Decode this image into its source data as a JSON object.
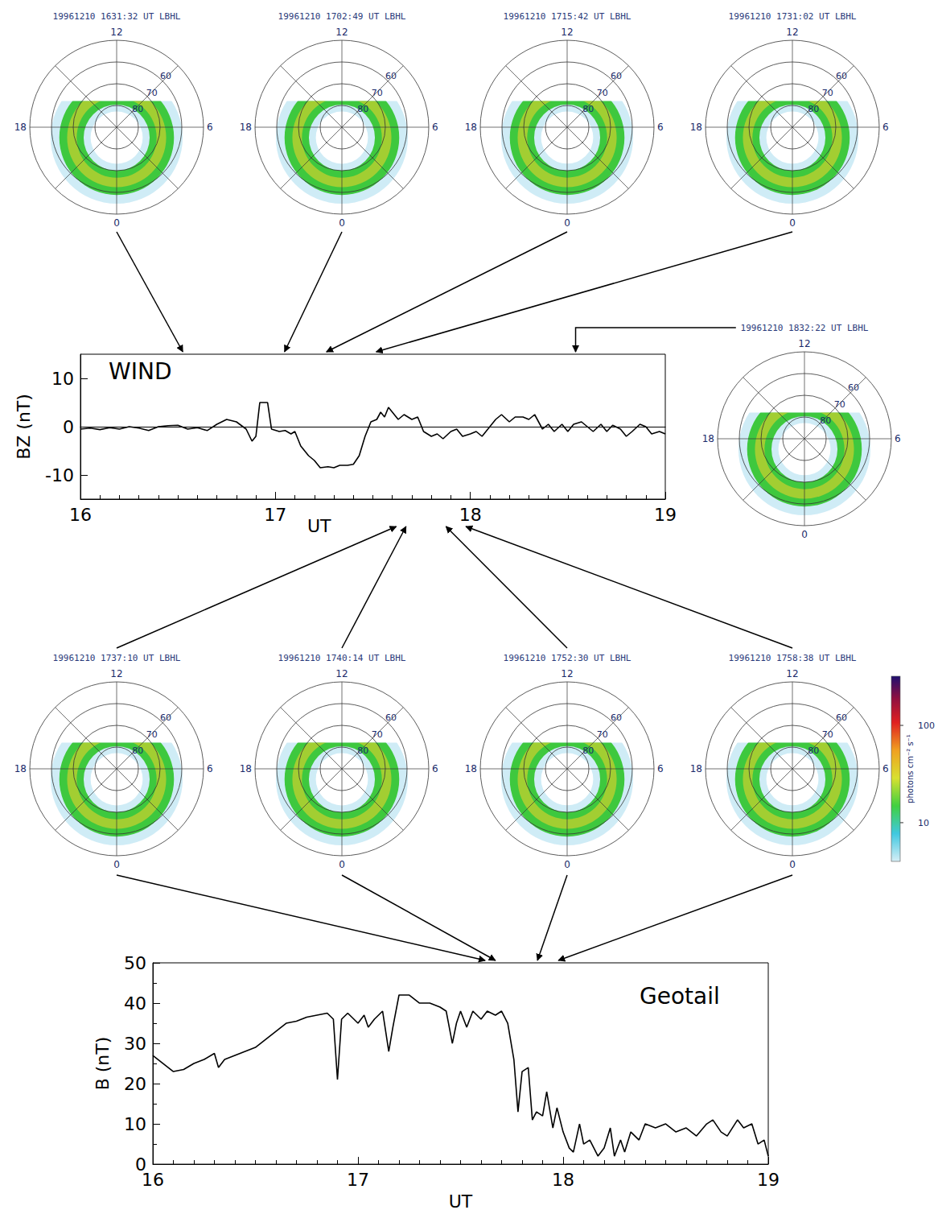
{
  "top_row": [
    {
      "title": "19961210 1631:32 UT LBHL",
      "ut": 16.525
    },
    {
      "title": "19961210 1702:49 UT LBHL",
      "ut": 17.047
    },
    {
      "title": "19961210 1715:42 UT LBHL",
      "ut": 17.262
    },
    {
      "title": "19961210 1731:02 UT LBHL",
      "ut": 17.517
    }
  ],
  "right_image": {
    "title": "19961210 1832:22 UT LBHL",
    "ut": 18.54
  },
  "middle_row": [
    {
      "title": "19961210 1737:10 UT LBHL",
      "ut": 17.62
    },
    {
      "title": "19961210 1740:14 UT LBHL",
      "ut": 17.67
    },
    {
      "title": "19961210 1752:30 UT LBHL",
      "ut": 17.875
    },
    {
      "title": "19961210 1758:38 UT LBHL",
      "ut": 17.977
    }
  ],
  "dial": {
    "hours": [
      12,
      6,
      0,
      18
    ],
    "latitudes": [
      60,
      70,
      80
    ],
    "lat_range": [
      50,
      90
    ]
  },
  "colorbar": {
    "label": "photons cm⁻² s⁻¹",
    "range": [
      4,
      320
    ],
    "ticks": [
      10,
      100
    ],
    "log": true
  },
  "chart_data": [
    {
      "type": "line",
      "title": "WIND",
      "xlabel": "UT",
      "ylabel": "BZ (nT)",
      "color": "#000000",
      "grid": false,
      "xlim": [
        16,
        19
      ],
      "xticks": [
        16,
        17,
        18,
        19
      ],
      "ylim": [
        -15,
        15
      ],
      "yticks": [
        -10,
        0,
        10
      ],
      "x": [
        16.0,
        16.05,
        16.1,
        16.15,
        16.2,
        16.25,
        16.3,
        16.35,
        16.4,
        16.45,
        16.5,
        16.55,
        16.6,
        16.65,
        16.7,
        16.75,
        16.8,
        16.85,
        16.88,
        16.9,
        16.92,
        16.96,
        16.98,
        17.02,
        17.05,
        17.08,
        17.1,
        17.13,
        17.17,
        17.2,
        17.23,
        17.27,
        17.3,
        17.33,
        17.37,
        17.4,
        17.43,
        17.46,
        17.49,
        17.52,
        17.54,
        17.56,
        17.58,
        17.6,
        17.63,
        17.66,
        17.7,
        17.73,
        17.76,
        17.8,
        17.83,
        17.86,
        17.9,
        17.93,
        17.96,
        18.0,
        18.03,
        18.06,
        18.1,
        18.13,
        18.16,
        18.2,
        18.23,
        18.27,
        18.3,
        18.33,
        18.37,
        18.4,
        18.43,
        18.47,
        18.5,
        18.53,
        18.57,
        18.6,
        18.63,
        18.67,
        18.7,
        18.73,
        18.77,
        18.8,
        18.83,
        18.87,
        18.9,
        18.93,
        18.97,
        19.0
      ],
      "values": [
        -0.5,
        -0.3,
        -0.6,
        -0.2,
        -0.5,
        0,
        -0.3,
        -0.8,
        0,
        0.2,
        0.3,
        -0.5,
        -0.2,
        -0.8,
        0.5,
        1.5,
        1,
        -0.5,
        -3,
        -2,
        5,
        5,
        -0.5,
        -1,
        -0.8,
        -1.5,
        -1,
        -4,
        -6,
        -7,
        -8.5,
        -8.3,
        -8.5,
        -8,
        -8,
        -7.8,
        -6,
        -2,
        1,
        1.5,
        3,
        2,
        4,
        3,
        1.5,
        2.5,
        1.5,
        2,
        -1,
        -2,
        -1.5,
        -2.5,
        -1,
        -0.5,
        -2,
        -1.5,
        -1,
        -2,
        0,
        1.5,
        2.5,
        1,
        2,
        2,
        1.5,
        2.5,
        -0.5,
        0.5,
        -1,
        0.5,
        -1,
        0.5,
        1,
        0,
        -1,
        0.5,
        -1,
        0.3,
        -0.5,
        -2,
        -1,
        0.5,
        0,
        -1.5,
        -1,
        -1.5
      ]
    },
    {
      "type": "line",
      "title": "Geotail",
      "xlabel": "UT",
      "ylabel": "B (nT)",
      "color": "#000000",
      "grid": false,
      "xlim": [
        16,
        19
      ],
      "xticks": [
        16,
        17,
        18,
        19
      ],
      "ylim": [
        0,
        50
      ],
      "yticks": [
        0,
        10,
        20,
        30,
        40,
        50
      ],
      "x": [
        16.0,
        16.05,
        16.1,
        16.15,
        16.2,
        16.25,
        16.3,
        16.32,
        16.35,
        16.4,
        16.45,
        16.5,
        16.55,
        16.6,
        16.65,
        16.7,
        16.75,
        16.8,
        16.85,
        16.88,
        16.9,
        16.92,
        16.95,
        17.0,
        17.03,
        17.05,
        17.08,
        17.12,
        17.15,
        17.17,
        17.2,
        17.25,
        17.3,
        17.35,
        17.4,
        17.43,
        17.46,
        17.48,
        17.5,
        17.53,
        17.56,
        17.6,
        17.63,
        17.67,
        17.7,
        17.73,
        17.76,
        17.78,
        17.8,
        17.83,
        17.85,
        17.87,
        17.9,
        17.92,
        17.95,
        17.97,
        18.0,
        18.03,
        18.05,
        18.08,
        18.1,
        18.13,
        18.17,
        18.2,
        18.23,
        18.25,
        18.28,
        18.3,
        18.33,
        18.37,
        18.4,
        18.45,
        18.5,
        18.55,
        18.6,
        18.65,
        18.7,
        18.73,
        18.77,
        18.8,
        18.85,
        18.88,
        18.92,
        18.95,
        18.98,
        19.0
      ],
      "values": [
        27,
        25,
        23,
        23.5,
        25,
        26,
        27.5,
        24,
        26,
        27,
        28,
        29,
        31,
        33,
        35,
        35.5,
        36.5,
        37,
        37.5,
        36,
        21,
        36,
        37.5,
        35,
        37,
        34,
        36,
        38,
        28,
        34,
        42,
        42,
        40,
        40,
        39,
        38,
        30,
        35,
        38,
        34,
        38,
        36,
        38,
        37,
        38,
        35,
        26,
        13,
        23,
        24,
        11,
        13,
        12,
        18,
        9,
        14,
        8,
        4,
        3,
        10,
        5,
        6,
        2,
        4,
        9,
        2,
        6,
        3,
        8,
        6,
        10,
        9,
        10,
        8,
        9,
        7,
        10,
        11,
        8,
        7,
        11,
        9,
        10,
        5,
        6,
        2
      ]
    }
  ]
}
